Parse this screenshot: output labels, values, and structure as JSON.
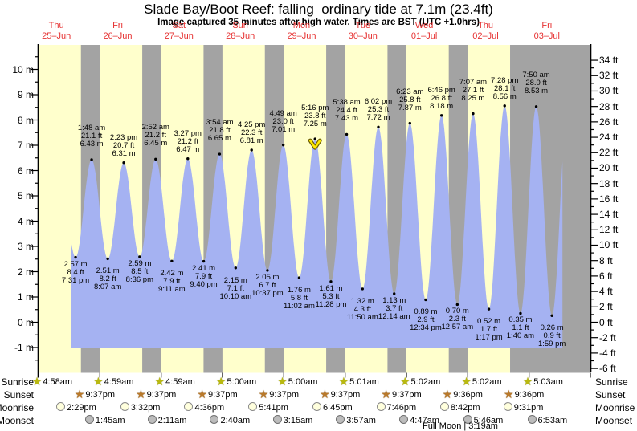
{
  "title": "Slade Bay/Boot Reef: falling  ordinary tide at 7.1m (23.4ft)",
  "subtitle": "Image captured 35 minutes after high water. Times are BST (UTC +1.0hrs)",
  "days": [
    {
      "name": "Thu",
      "date": "25–Jun"
    },
    {
      "name": "Fri",
      "date": "26–Jun"
    },
    {
      "name": "Sat",
      "date": "27–Jun"
    },
    {
      "name": "Sun",
      "date": "28–Jun"
    },
    {
      "name": "Mon",
      "date": "29–Jun"
    },
    {
      "name": "Tue",
      "date": "30–Jun"
    },
    {
      "name": "Wed",
      "date": "01–Jul"
    },
    {
      "name": "Thu",
      "date": "02–Jul"
    },
    {
      "name": "Fri",
      "date": "03–Jul"
    }
  ],
  "axes": {
    "left_ticks": [
      {
        "v": 10,
        "label": "10 m"
      },
      {
        "v": 9,
        "label": "9 m"
      },
      {
        "v": 8,
        "label": "8 m"
      },
      {
        "v": 7,
        "label": "7 m"
      },
      {
        "v": 6,
        "label": "6 m"
      },
      {
        "v": 5,
        "label": "5 m"
      },
      {
        "v": 4,
        "label": "4 m"
      },
      {
        "v": 3,
        "label": "3 m"
      },
      {
        "v": 2,
        "label": "2 m"
      },
      {
        "v": 1,
        "label": "1 m"
      },
      {
        "v": 0,
        "label": "0 m"
      },
      {
        "v": -1,
        "label": "-1 m"
      }
    ],
    "right_ticks": [
      {
        "ft": 34,
        "label": "34 ft"
      },
      {
        "ft": 32,
        "label": "32 ft"
      },
      {
        "ft": 30,
        "label": "30 ft"
      },
      {
        "ft": 28,
        "label": "28 ft"
      },
      {
        "ft": 26,
        "label": "26 ft"
      },
      {
        "ft": 24,
        "label": "24 ft"
      },
      {
        "ft": 22,
        "label": "22 ft"
      },
      {
        "ft": 20,
        "label": "20 ft"
      },
      {
        "ft": 18,
        "label": "18 ft"
      },
      {
        "ft": 16,
        "label": "16 ft"
      },
      {
        "ft": 14,
        "label": "14 ft"
      },
      {
        "ft": 12,
        "label": "12 ft"
      },
      {
        "ft": 10,
        "label": "10 ft"
      },
      {
        "ft": 8,
        "label": "8 ft"
      },
      {
        "ft": 6,
        "label": "6 ft"
      },
      {
        "ft": 4,
        "label": "4 ft"
      },
      {
        "ft": 2,
        "label": "2 ft"
      },
      {
        "ft": 0,
        "label": "0 ft"
      },
      {
        "ft": -2,
        "label": "-2 ft"
      },
      {
        "ft": -4,
        "label": "-4 ft"
      },
      {
        "ft": -6,
        "label": "-6 ft"
      }
    ]
  },
  "chart_data": {
    "type": "area",
    "title": "Slade Bay/Boot Reef tide curve",
    "y_unit_left": "m",
    "y_unit_right": "ft",
    "y_range_m": [
      -2,
      11
    ],
    "fill_baseline_m": -1.0,
    "extremes": [
      {
        "day": 0,
        "time": "7:31 pm",
        "type": "low",
        "m": 2.57,
        "ft": 8.4
      },
      {
        "day": 1,
        "time": "1:48 am",
        "type": "high",
        "m": 6.43,
        "ft": 21.1
      },
      {
        "day": 1,
        "time": "8:07 am",
        "type": "low",
        "m": 2.51,
        "ft": 8.2
      },
      {
        "day": 1,
        "time": "2:23 pm",
        "type": "high",
        "m": 6.31,
        "ft": 20.7
      },
      {
        "day": 1,
        "time": "8:36 pm",
        "type": "low",
        "m": 2.59,
        "ft": 8.5
      },
      {
        "day": 2,
        "time": "2:52 am",
        "type": "high",
        "m": 6.45,
        "ft": 21.2
      },
      {
        "day": 2,
        "time": "9:11 am",
        "type": "low",
        "m": 2.42,
        "ft": 7.9
      },
      {
        "day": 2,
        "time": "3:27 pm",
        "type": "high",
        "m": 6.47,
        "ft": 21.2
      },
      {
        "day": 2,
        "time": "9:40 pm",
        "type": "low",
        "m": 2.41,
        "ft": 7.9
      },
      {
        "day": 3,
        "time": "3:54 am",
        "type": "high",
        "m": 6.65,
        "ft": 21.8
      },
      {
        "day": 3,
        "time": "10:10 am",
        "type": "low",
        "m": 2.15,
        "ft": 7.1
      },
      {
        "day": 3,
        "time": "4:25 pm",
        "type": "high",
        "m": 6.81,
        "ft": 22.3
      },
      {
        "day": 3,
        "time": "10:37 pm",
        "type": "low",
        "m": 2.05,
        "ft": 6.7
      },
      {
        "day": 4,
        "time": "4:49 am",
        "type": "high",
        "m": 7.01,
        "ft": 23.0
      },
      {
        "day": 4,
        "time": "11:02 am",
        "type": "low",
        "m": 1.76,
        "ft": 5.8
      },
      {
        "day": 4,
        "time": "5:16 pm",
        "type": "high",
        "m": 7.25,
        "ft": 23.8,
        "marker": true
      },
      {
        "day": 4,
        "time": "11:28 pm",
        "type": "low",
        "m": 1.61,
        "ft": 5.3
      },
      {
        "day": 5,
        "time": "5:38 am",
        "type": "high",
        "m": 7.43,
        "ft": 24.4
      },
      {
        "day": 5,
        "time": "11:50 am",
        "type": "low",
        "m": 1.32,
        "ft": 4.3
      },
      {
        "day": 5,
        "time": "6:02 pm",
        "type": "high",
        "m": 7.72,
        "ft": 25.3
      },
      {
        "day": 6,
        "time": "12:14 am",
        "type": "low",
        "m": 1.13,
        "ft": 3.7
      },
      {
        "day": 6,
        "time": "6:23 am",
        "type": "high",
        "m": 7.87,
        "ft": 25.8
      },
      {
        "day": 6,
        "time": "12:34 pm",
        "type": "low",
        "m": 0.89,
        "ft": 2.9
      },
      {
        "day": 6,
        "time": "6:46 pm",
        "type": "high",
        "m": 8.18,
        "ft": 26.8
      },
      {
        "day": 7,
        "time": "12:57 am",
        "type": "low",
        "m": 0.7,
        "ft": 2.3
      },
      {
        "day": 7,
        "time": "7:07 am",
        "type": "high",
        "m": 8.25,
        "ft": 27.1
      },
      {
        "day": 7,
        "time": "1:17 pm",
        "type": "low",
        "m": 0.52,
        "ft": 1.7
      },
      {
        "day": 7,
        "time": "7:28 pm",
        "type": "high",
        "m": 8.56,
        "ft": 28.1
      },
      {
        "day": 8,
        "time": "1:40 am",
        "type": "low",
        "m": 0.35,
        "ft": 1.1
      },
      {
        "day": 8,
        "time": "7:50 am",
        "type": "high",
        "m": 8.53,
        "ft": 28.0
      },
      {
        "day": 8,
        "time": "1:59 pm",
        "type": "low",
        "m": 0.26,
        "ft": 0.9
      }
    ],
    "curve_start": {
      "day": 0,
      "hour": 17.9,
      "m": 3.0
    },
    "curve_end": {
      "day": 8,
      "hour": 18.1,
      "m": 6.4
    },
    "virtual_prev_high": {
      "day": 0,
      "hour": 13.1,
      "m": 6.2
    },
    "virtual_next_high": {
      "day": 8,
      "hour": 20.2,
      "m": 8.5
    },
    "marker_shape": "yellow-down-arrow"
  },
  "astro": {
    "row_labels": [
      "Sunrise",
      "Sunset",
      "Moonrise",
      "Moonset"
    ],
    "sunrise": [
      {
        "day": 0,
        "time": "4:58am"
      },
      {
        "day": 1,
        "time": "4:59am"
      },
      {
        "day": 2,
        "time": "4:59am"
      },
      {
        "day": 3,
        "time": "5:00am"
      },
      {
        "day": 4,
        "time": "5:00am"
      },
      {
        "day": 5,
        "time": "5:01am"
      },
      {
        "day": 6,
        "time": "5:02am"
      },
      {
        "day": 7,
        "time": "5:02am"
      },
      {
        "day": 8,
        "time": "5:03am"
      }
    ],
    "sunset": [
      {
        "day": 0,
        "time": "9:37pm"
      },
      {
        "day": 1,
        "time": "9:37pm"
      },
      {
        "day": 2,
        "time": "9:37pm"
      },
      {
        "day": 3,
        "time": "9:37pm"
      },
      {
        "day": 4,
        "time": "9:37pm"
      },
      {
        "day": 5,
        "time": "9:37pm"
      },
      {
        "day": 6,
        "time": "9:36pm"
      },
      {
        "day": 7,
        "time": "9:36pm"
      }
    ],
    "moonrise": [
      {
        "day": 0,
        "time": "2:29pm"
      },
      {
        "day": 1,
        "time": "3:32pm"
      },
      {
        "day": 2,
        "time": "4:36pm"
      },
      {
        "day": 3,
        "time": "5:41pm"
      },
      {
        "day": 4,
        "time": "6:45pm"
      },
      {
        "day": 5,
        "time": "7:46pm"
      },
      {
        "day": 6,
        "time": "8:42pm"
      },
      {
        "day": 7,
        "time": "9:31pm"
      }
    ],
    "moonset": [
      {
        "day": 1,
        "time": "1:45am"
      },
      {
        "day": 2,
        "time": "2:11am"
      },
      {
        "day": 3,
        "time": "2:40am"
      },
      {
        "day": 4,
        "time": "3:15am"
      },
      {
        "day": 5,
        "time": "3:57am"
      },
      {
        "day": 6,
        "time": "4:47am"
      },
      {
        "day": 7,
        "time": "5:46am"
      },
      {
        "day": 8,
        "time": "6:53am"
      }
    ],
    "full_moon": "Full Moon | 3:19am"
  },
  "colors": {
    "day_band": "#ffffcc",
    "night_band": "#a3a3a3",
    "tide_fill": "#a5b2f2",
    "day_label_red": "#e63232",
    "marker_fill": "#ffe900",
    "marker_edge": "#6b5c00",
    "sunrise_star": "#b9b90f",
    "sunrise_star_edge": "#73730a",
    "sunset_star": "#b9792a",
    "sunset_star_edge": "#6e4413",
    "moonrise_fill": "#ffffdd",
    "moonrise_edge": "#8a8a8a",
    "moonset_fill": "#bcbcbc",
    "moonset_edge": "#6f6f6f"
  }
}
